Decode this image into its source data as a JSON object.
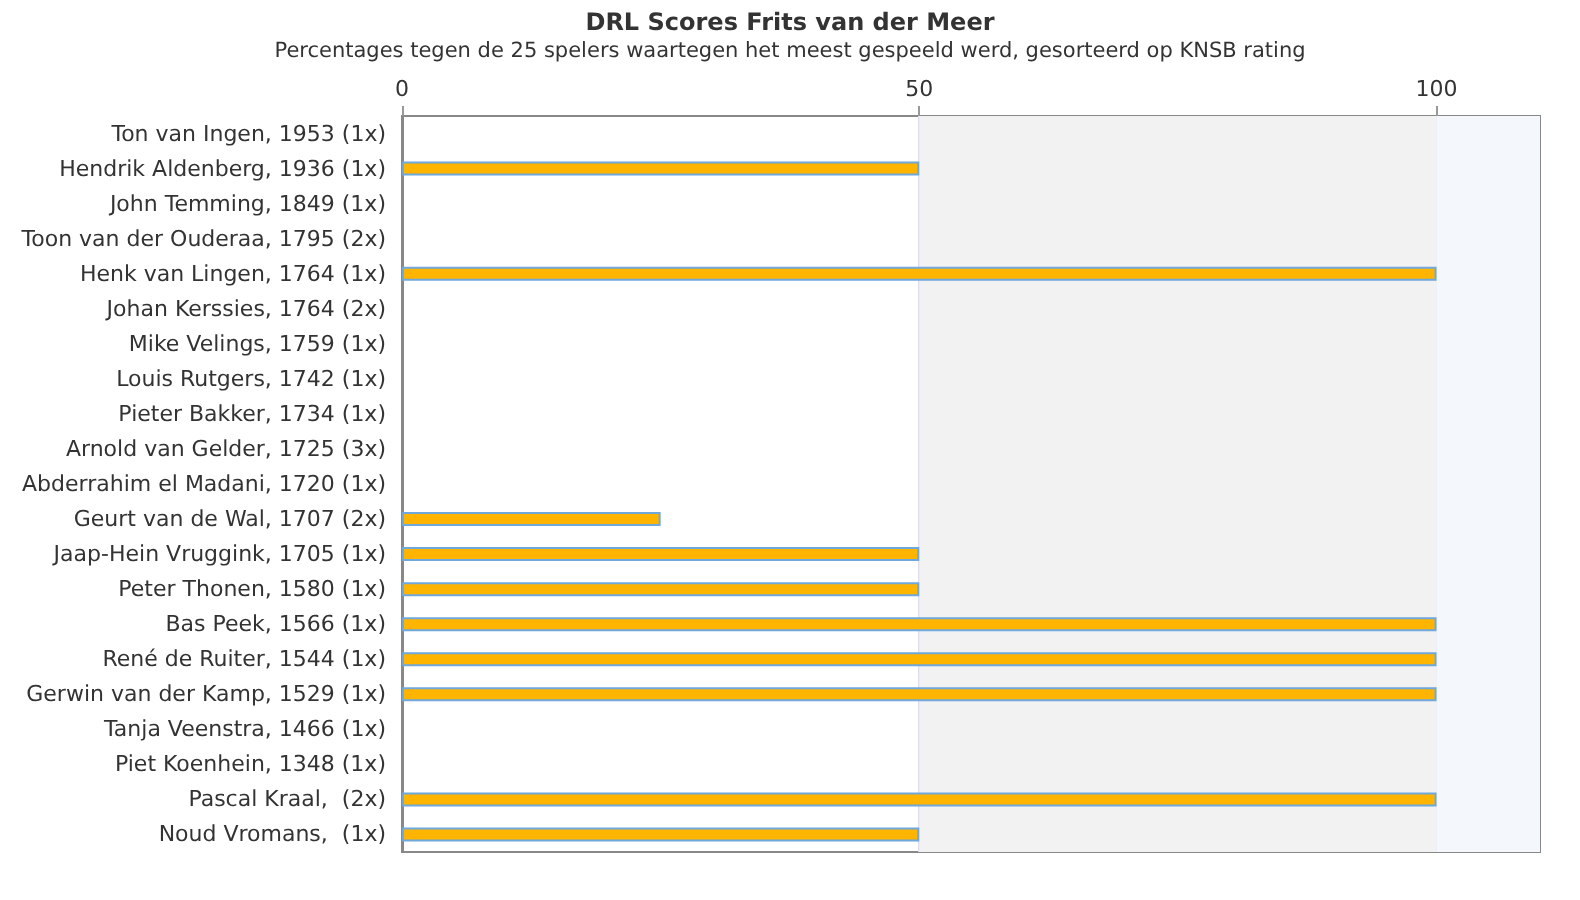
{
  "chart_data": {
    "type": "bar",
    "orientation": "horizontal",
    "title": "DRL Scores Frits van der Meer",
    "subtitle": "Percentages tegen de 25 spelers waartegen het meest gespeeld werd, gesorteerd op KNSB rating",
    "categories": [
      "Ton van Ingen, 1953 (1x)",
      "Hendrik Aldenberg, 1936 (1x)",
      "John Temming, 1849 (1x)",
      "Toon van der Ouderaa, 1795 (2x)",
      "Henk van Lingen, 1764 (1x)",
      "Johan Kerssies, 1764 (2x)",
      "Mike Velings, 1759 (1x)",
      "Louis Rutgers, 1742 (1x)",
      "Pieter Bakker, 1734 (1x)",
      "Arnold van Gelder, 1725 (3x)",
      "Abderrahim el Madani, 1720 (1x)",
      "Geurt van de Wal, 1707 (2x)",
      "Jaap-Hein Vruggink, 1705 (1x)",
      "Peter Thonen, 1580 (1x)",
      "Bas Peek, 1566 (1x)",
      "René de Ruiter, 1544 (1x)",
      "Gerwin van der Kamp, 1529 (1x)",
      "Tanja Veenstra, 1466 (1x)",
      "Piet Koenhein, 1348 (1x)",
      "Pascal Kraal,  (2x)",
      "Noud Vromans,  (1x)"
    ],
    "values": [
      0,
      50,
      0,
      0,
      100,
      0,
      0,
      0,
      0,
      0,
      0,
      25,
      50,
      50,
      100,
      100,
      100,
      0,
      0,
      100,
      50
    ],
    "color": "#ffb400",
    "xlim": [
      0,
      110
    ],
    "xticks": [
      0,
      50,
      100
    ],
    "grid": "x",
    "bands": [
      {
        "axis": "x",
        "from": 50,
        "to": 100,
        "color": "#f2f2f2"
      },
      {
        "axis": "x",
        "from": 100,
        "to": 110,
        "color": "#f4f8fc"
      }
    ]
  }
}
